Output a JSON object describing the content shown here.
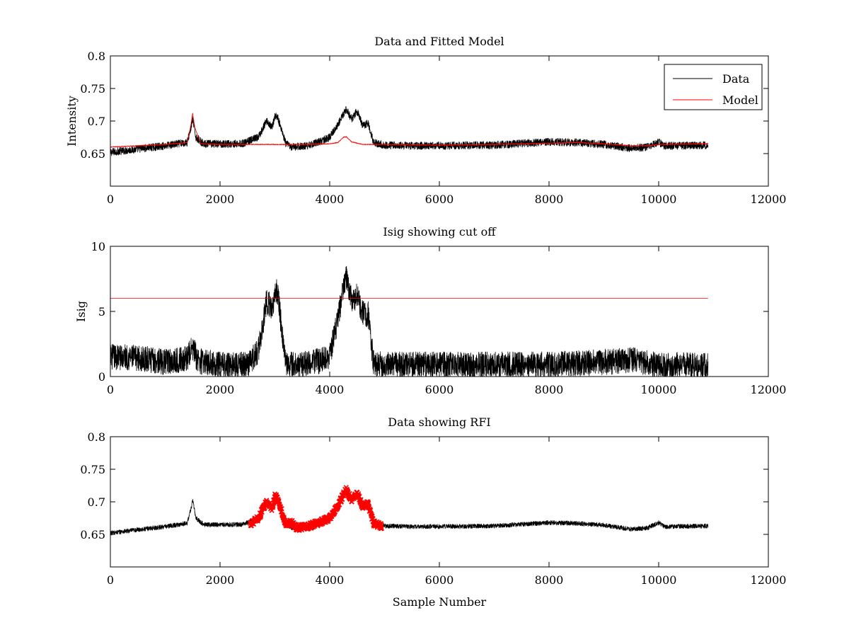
{
  "colors": {
    "data": "#000000",
    "model": "#ff0000",
    "rfi": "#ff0000",
    "background": "#ffffff"
  },
  "chart_data": [
    {
      "type": "line",
      "title": "Data and Fitted Model",
      "xlabel": "",
      "ylabel": "Intensity",
      "xlim": [
        0,
        12000
      ],
      "ylim": [
        0.6,
        0.8
      ],
      "xticks": [
        0,
        2000,
        4000,
        6000,
        8000,
        10000,
        12000
      ],
      "yticks": [
        0.65,
        0.7,
        0.75,
        0.8
      ],
      "xtick_labels": [
        "0",
        "2000",
        "4000",
        "6000",
        "8000",
        "10000",
        "12000"
      ],
      "ytick_labels": [
        "0.65",
        "0.7",
        "0.75",
        "0.8"
      ],
      "legend": {
        "position": "top-right",
        "entries": [
          "Data",
          "Model"
        ]
      },
      "series": [
        {
          "name": "Data",
          "color": "#000000",
          "noise": 0.006,
          "kind": "line",
          "x": [
            0,
            500,
            1000,
            1400,
            1480,
            1500,
            1560,
            1700,
            2000,
            2400,
            2700,
            2850,
            2950,
            3000,
            3050,
            3200,
            3300,
            3600,
            3800,
            4000,
            4150,
            4300,
            4400,
            4500,
            4600,
            4700,
            4800,
            5000,
            5500,
            6000,
            7000,
            8000,
            8500,
            9000,
            9500,
            9800,
            10000,
            10100,
            10300,
            10900
          ],
          "y": [
            0.652,
            0.657,
            0.662,
            0.667,
            0.693,
            0.703,
            0.675,
            0.665,
            0.665,
            0.665,
            0.675,
            0.7,
            0.69,
            0.708,
            0.706,
            0.665,
            0.66,
            0.662,
            0.668,
            0.675,
            0.695,
            0.718,
            0.703,
            0.715,
            0.693,
            0.697,
            0.667,
            0.663,
            0.662,
            0.662,
            0.663,
            0.668,
            0.667,
            0.664,
            0.658,
            0.66,
            0.668,
            0.662,
            0.662,
            0.663
          ]
        },
        {
          "name": "Model",
          "color": "#ff0000",
          "noise": 0.0006,
          "kind": "line",
          "x": [
            0,
            500,
            1000,
            1400,
            1460,
            1500,
            1540,
            1650,
            2000,
            2500,
            3000,
            3500,
            4000,
            4150,
            4250,
            4300,
            4400,
            4600,
            5000,
            6000,
            7000,
            8000,
            8500,
            9000,
            9500,
            9800,
            10000,
            10900
          ],
          "y": [
            0.66,
            0.662,
            0.664,
            0.667,
            0.69,
            0.712,
            0.69,
            0.665,
            0.664,
            0.664,
            0.664,
            0.664,
            0.665,
            0.667,
            0.675,
            0.676,
            0.668,
            0.664,
            0.664,
            0.663,
            0.664,
            0.666,
            0.667,
            0.665,
            0.662,
            0.662,
            0.664,
            0.665
          ]
        }
      ]
    },
    {
      "type": "line",
      "title": "Isig showing cut off",
      "xlabel": "",
      "ylabel": "Isig",
      "xlim": [
        0,
        12000
      ],
      "ylim": [
        0,
        10
      ],
      "xticks": [
        0,
        2000,
        4000,
        6000,
        8000,
        10000,
        12000
      ],
      "yticks": [
        0,
        5,
        10
      ],
      "xtick_labels": [
        "0",
        "2000",
        "4000",
        "6000",
        "8000",
        "10000",
        "12000"
      ],
      "ytick_labels": [
        "0",
        "5",
        "10"
      ],
      "series": [
        {
          "name": "Isig",
          "color": "#000000",
          "noise": 1.0,
          "floor": 0,
          "kind": "line",
          "x": [
            0,
            300,
            700,
            1000,
            1400,
            1500,
            1600,
            2000,
            2500,
            2700,
            2850,
            2950,
            3000,
            3050,
            3200,
            3500,
            3800,
            4000,
            4150,
            4250,
            4300,
            4400,
            4500,
            4600,
            4700,
            4800,
            5000,
            6000,
            7000,
            8000,
            9000,
            9500,
            9800,
            10000,
            10900
          ],
          "y": [
            1.5,
            1.5,
            1.3,
            1.1,
            1.4,
            2.2,
            1.2,
            0.9,
            0.9,
            2.0,
            5.8,
            5.2,
            6.5,
            6.5,
            0.9,
            0.9,
            1.2,
            1.6,
            4.5,
            6.7,
            7.6,
            5.8,
            6.2,
            4.8,
            4.8,
            1.0,
            0.9,
            0.9,
            0.9,
            0.9,
            1.1,
            1.3,
            1.0,
            0.9,
            0.8
          ]
        },
        {
          "name": "Cut off",
          "color": "#ff0000",
          "noise": 0,
          "kind": "line",
          "x": [
            0,
            10900
          ],
          "y": [
            6,
            6
          ]
        }
      ]
    },
    {
      "type": "line",
      "title": "Data showing RFI",
      "xlabel": "Sample Number",
      "ylabel": "",
      "xlim": [
        0,
        12000
      ],
      "ylim": [
        0.6,
        0.8
      ],
      "xticks": [
        0,
        2000,
        4000,
        6000,
        8000,
        10000,
        12000
      ],
      "yticks": [
        0.65,
        0.7,
        0.75,
        0.8
      ],
      "xtick_labels": [
        "0",
        "2000",
        "4000",
        "6000",
        "8000",
        "10000",
        "12000"
      ],
      "ytick_labels": [
        "0.65",
        "0.7",
        "0.75",
        "0.8"
      ],
      "series": [
        {
          "name": "Data",
          "color": "#000000",
          "noise": 0.0035,
          "kind": "line",
          "x": [
            0,
            500,
            1000,
            1400,
            1480,
            1500,
            1560,
            1700,
            2000,
            2400,
            2700,
            2850,
            2950,
            3000,
            3050,
            3200,
            3300,
            3600,
            3800,
            4000,
            4150,
            4300,
            4400,
            4500,
            4600,
            4700,
            4800,
            5000,
            5500,
            6000,
            7000,
            8000,
            8500,
            9000,
            9500,
            9800,
            10000,
            10100,
            10300,
            10900
          ],
          "y": [
            0.652,
            0.657,
            0.662,
            0.667,
            0.693,
            0.703,
            0.675,
            0.665,
            0.665,
            0.665,
            0.675,
            0.7,
            0.69,
            0.708,
            0.706,
            0.665,
            0.66,
            0.662,
            0.668,
            0.675,
            0.695,
            0.718,
            0.703,
            0.715,
            0.693,
            0.697,
            0.667,
            0.663,
            0.662,
            0.662,
            0.663,
            0.668,
            0.667,
            0.664,
            0.658,
            0.66,
            0.668,
            0.662,
            0.662,
            0.663
          ]
        },
        {
          "name": "RFI",
          "color": "#ff0000",
          "noise": 0.0045,
          "kind": "markers",
          "x": [
            2550,
            2700,
            2850,
            2950,
            3000,
            3050,
            3200,
            3300,
            3400,
            3600,
            3800,
            4000,
            4150,
            4300,
            4400,
            4500,
            4600,
            4700,
            4800,
            4950
          ],
          "y": [
            0.665,
            0.675,
            0.7,
            0.69,
            0.708,
            0.706,
            0.665,
            0.668,
            0.66,
            0.662,
            0.668,
            0.675,
            0.695,
            0.718,
            0.703,
            0.715,
            0.693,
            0.697,
            0.667,
            0.662
          ]
        }
      ]
    }
  ]
}
